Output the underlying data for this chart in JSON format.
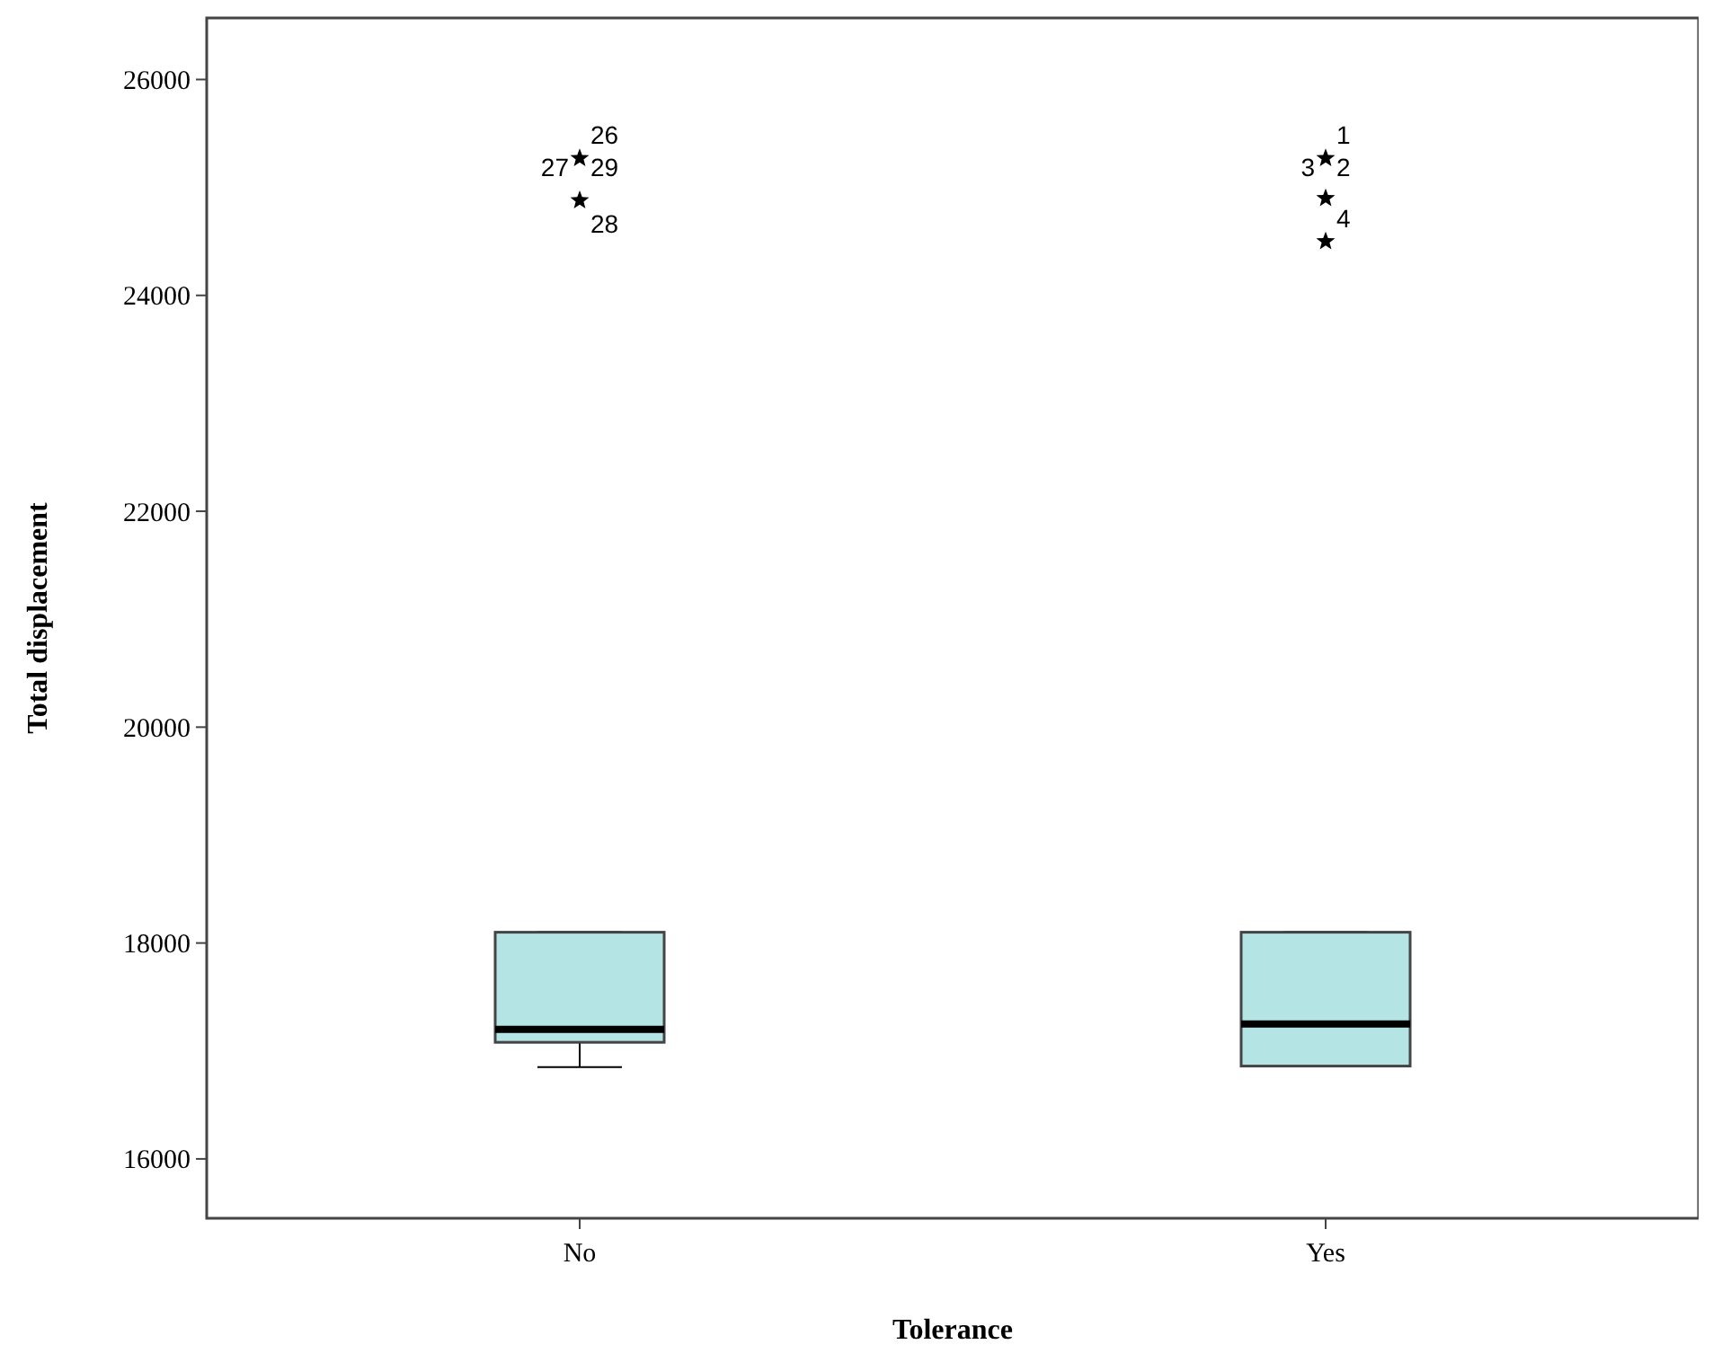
{
  "chart_data": {
    "type": "box",
    "xlabel": "Tolerance",
    "ylabel": "Total displacement",
    "categories": [
      "No",
      "Yes"
    ],
    "color": "#b4e4e4",
    "marker": "star",
    "grid": false,
    "ylim": [
      15450,
      26570
    ],
    "yticks": [
      16000,
      18000,
      20000,
      22000,
      24000,
      26000
    ],
    "boxes": [
      {
        "low": 16850,
        "q1": 17080,
        "median": 17200,
        "q3": 18100,
        "high": 18100,
        "outliers": [
          25270,
          24880
        ]
      },
      {
        "low": 16860,
        "q1": 16860,
        "median": 17250,
        "q3": 18100,
        "high": 18100,
        "outliers": [
          25270,
          24900,
          24500
        ]
      }
    ],
    "annotations": [
      "26",
      "27",
      "29",
      "28",
      "1",
      "3",
      "2",
      "4"
    ]
  }
}
